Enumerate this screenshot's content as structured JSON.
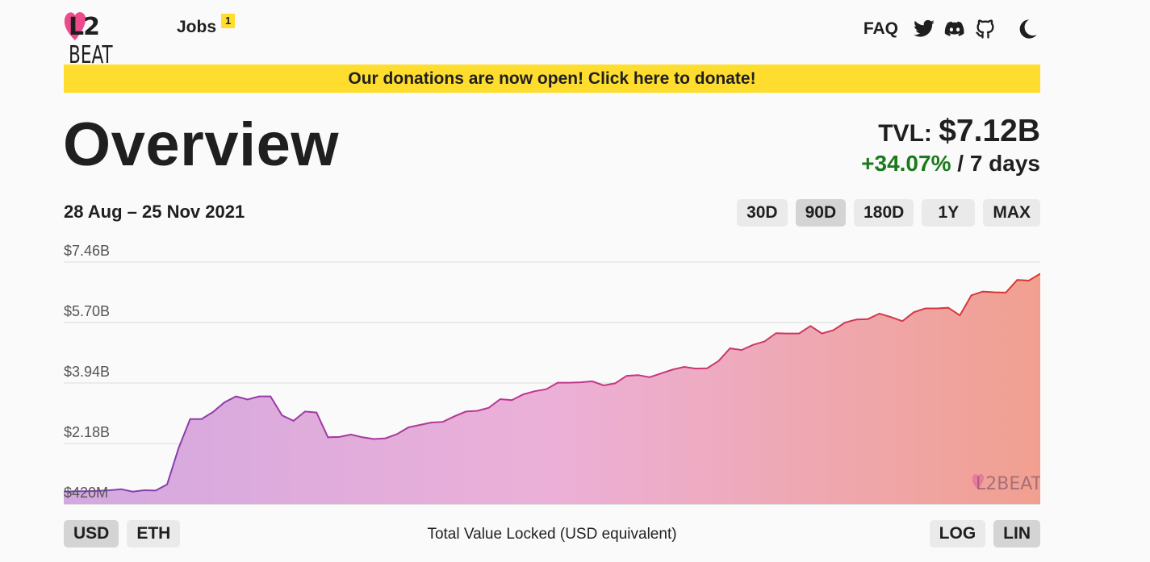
{
  "header": {
    "logo_text_l2": "L2",
    "logo_text_beat": "BEAT",
    "jobs_label": "Jobs",
    "jobs_badge": "1",
    "faq_label": "FAQ",
    "icons": [
      "twitter-icon",
      "discord-icon",
      "github-icon",
      "moon-icon"
    ]
  },
  "banner": {
    "text": "Our donations are now open! Click here to donate!"
  },
  "page": {
    "title": "Overview"
  },
  "tvl": {
    "label": "TVL:",
    "value": "$7.12B",
    "change": "+34.07%",
    "period": "/ 7 days"
  },
  "range": {
    "date_range": "28 Aug – 25 Nov 2021",
    "buttons": [
      "30D",
      "90D",
      "180D",
      "1Y",
      "MAX"
    ],
    "selected": "90D"
  },
  "currency": {
    "buttons": [
      "USD",
      "ETH"
    ],
    "selected": "USD"
  },
  "scale": {
    "buttons": [
      "LOG",
      "LIN"
    ],
    "selected": "LIN"
  },
  "chart_data": {
    "type": "area",
    "title": "",
    "xlabel": "Total Value Locked (USD equivalent)",
    "ylabel": "",
    "x_range": [
      "28 Aug 2021",
      "25 Nov 2021"
    ],
    "y_tick_labels": [
      "$7.46B",
      "$5.70B",
      "$3.94B",
      "$2.18B",
      "$420M"
    ],
    "ylim": [
      0.42,
      7.46
    ],
    "grid": true,
    "scale": "linear",
    "watermark": "L2BEAT",
    "series": [
      {
        "values": [
          0.78,
          0.79,
          0.79,
          0.8,
          0.82,
          0.85,
          0.78,
          0.82,
          0.81,
          0.99,
          2.05,
          2.89,
          2.89,
          3.1,
          3.38,
          3.55,
          3.46,
          3.55,
          3.55,
          3.0,
          2.84,
          3.11,
          3.08,
          2.36,
          2.37,
          2.44,
          2.36,
          2.31,
          2.33,
          2.45,
          2.65,
          2.72,
          2.79,
          2.81,
          2.97,
          3.11,
          3.13,
          3.22,
          3.47,
          3.44,
          3.61,
          3.7,
          3.76,
          3.95,
          3.95,
          3.96,
          3.99,
          3.87,
          3.93,
          4.15,
          4.17,
          4.11,
          4.22,
          4.33,
          4.41,
          4.36,
          4.37,
          4.58,
          4.95,
          4.9,
          5.05,
          5.15,
          5.39,
          5.38,
          5.38,
          5.6,
          5.38,
          5.48,
          5.7,
          5.79,
          5.8,
          5.96,
          5.86,
          5.74,
          6.0,
          6.11,
          6.11,
          6.13,
          5.91,
          6.49,
          6.6,
          6.58,
          6.57,
          6.94,
          6.92,
          7.12
        ]
      }
    ],
    "line_colors": [
      "#7b3fb6",
      "#c2368f",
      "#d83a2e"
    ],
    "fill_colors": [
      "#d3a8e0",
      "#ecb0d8",
      "#f1a090"
    ]
  }
}
